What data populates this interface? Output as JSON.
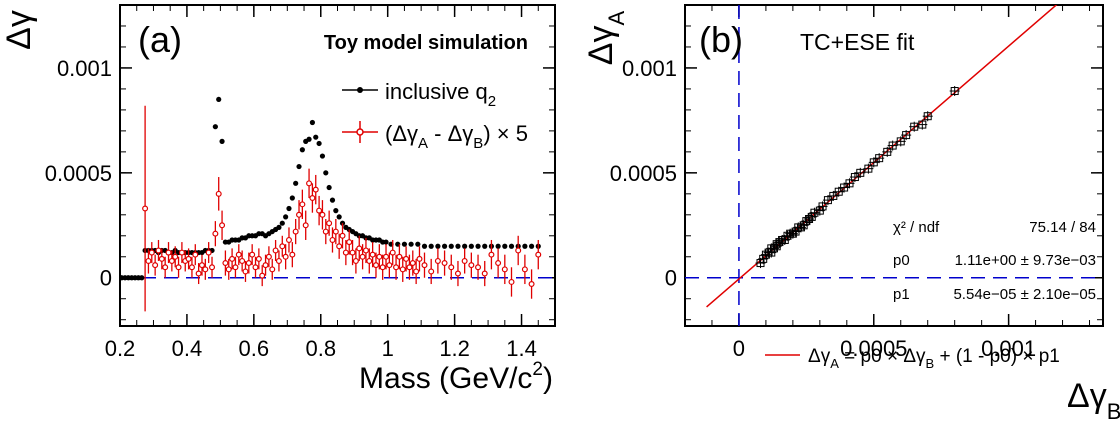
{
  "chart_data": [
    {
      "type": "scatter",
      "panel_label": "(a)",
      "title": "Toy model simulation",
      "ylabel": "Δγ",
      "xlabel": {
        "main": "Mass (GeV/c",
        "sup": "2",
        "end": ")"
      },
      "xlim": [
        0.2,
        1.5
      ],
      "ylim": [
        -0.00023,
        0.0013
      ],
      "xticks": [
        0.2,
        0.4,
        0.6,
        0.8,
        1,
        1.2,
        1.4
      ],
      "xtick_labels": [
        "0.2",
        "0.4",
        "0.6",
        "0.8",
        "1",
        "1.2",
        "1.4"
      ],
      "yticks": [
        0,
        0.0005,
        0.001
      ],
      "ytick_labels": [
        "0",
        "0.0005",
        "0.001"
      ],
      "zero_line": true,
      "legend_placement": "top-right",
      "legend": [
        {
          "key": "inclusive",
          "text": "inclusive q",
          "sub": "2"
        },
        {
          "key": "diff",
          "parts": [
            "(Δγ",
            "A",
            " - Δγ",
            "B",
            ") × 5"
          ]
        }
      ],
      "colors": {
        "inclusive": "#000000",
        "diff": "#e00000",
        "zero": "#0000cc"
      },
      "series": [
        {
          "name": "inclusive q2",
          "x": [
            0.205,
            0.215,
            0.225,
            0.235,
            0.245,
            0.255,
            0.265,
            0.275,
            0.285,
            0.295,
            0.305,
            0.315,
            0.325,
            0.335,
            0.345,
            0.355,
            0.365,
            0.375,
            0.385,
            0.395,
            0.405,
            0.415,
            0.425,
            0.435,
            0.445,
            0.455,
            0.465,
            0.475,
            0.485,
            0.495,
            0.505,
            0.515,
            0.525,
            0.535,
            0.545,
            0.555,
            0.565,
            0.575,
            0.585,
            0.595,
            0.605,
            0.615,
            0.625,
            0.635,
            0.645,
            0.655,
            0.665,
            0.675,
            0.685,
            0.695,
            0.705,
            0.715,
            0.725,
            0.735,
            0.745,
            0.755,
            0.765,
            0.775,
            0.785,
            0.795,
            0.805,
            0.815,
            0.825,
            0.835,
            0.845,
            0.855,
            0.865,
            0.875,
            0.885,
            0.895,
            0.905,
            0.915,
            0.925,
            0.935,
            0.945,
            0.955,
            0.965,
            0.975,
            0.985,
            0.995,
            1.01,
            1.03,
            1.05,
            1.07,
            1.09,
            1.11,
            1.13,
            1.15,
            1.17,
            1.19,
            1.21,
            1.23,
            1.25,
            1.27,
            1.29,
            1.31,
            1.33,
            1.35,
            1.37,
            1.39,
            1.41,
            1.43,
            1.45
          ],
          "y": [
            0,
            0,
            0,
            0,
            0,
            0,
            0,
            0.00013,
            0.00013,
            0.00013,
            0.00013,
            0.00012,
            0.00013,
            0.00013,
            0.00012,
            0.00012,
            0.00013,
            0.00012,
            0.00012,
            0.00012,
            0.00012,
            0.00012,
            0.00012,
            0.00012,
            0.00012,
            0.00013,
            0.00013,
            0.00013,
            0.00072,
            0.00085,
            0.00065,
            0.00017,
            0.00017,
            0.00018,
            0.00018,
            0.00018,
            0.00019,
            0.00019,
            0.0002,
            0.0002,
            0.0002,
            0.00021,
            0.00021,
            0.0002,
            0.00021,
            0.00022,
            0.00023,
            0.00024,
            0.00026,
            0.00029,
            0.00033,
            0.00038,
            0.00045,
            0.00053,
            0.00061,
            0.00065,
            0.00066,
            0.00074,
            0.00067,
            0.00064,
            0.00058,
            0.0005,
            0.00043,
            0.00037,
            0.00032,
            0.00029,
            0.00026,
            0.00024,
            0.00023,
            0.00022,
            0.00021,
            0.0002,
            0.0002,
            0.00019,
            0.00019,
            0.00018,
            0.00018,
            0.00018,
            0.00017,
            0.00017,
            0.00016,
            0.00016,
            0.00016,
            0.00016,
            0.00016,
            0.00015,
            0.00015,
            0.00015,
            0.00015,
            0.00015,
            0.00015,
            0.00015,
            0.00015,
            0.00015,
            0.00015,
            0.00015,
            0.00015,
            0.00015,
            0.00015,
            0.00015,
            0.00015,
            0.00015,
            0.00015
          ]
        },
        {
          "name": "(ΔγA - ΔγB) × 5",
          "x": [
            0.275,
            0.285,
            0.295,
            0.305,
            0.315,
            0.325,
            0.335,
            0.345,
            0.355,
            0.365,
            0.375,
            0.385,
            0.395,
            0.405,
            0.415,
            0.425,
            0.435,
            0.445,
            0.455,
            0.465,
            0.475,
            0.485,
            0.495,
            0.505,
            0.515,
            0.525,
            0.535,
            0.545,
            0.555,
            0.565,
            0.575,
            0.585,
            0.595,
            0.605,
            0.615,
            0.625,
            0.635,
            0.645,
            0.655,
            0.665,
            0.675,
            0.685,
            0.695,
            0.705,
            0.715,
            0.725,
            0.735,
            0.745,
            0.755,
            0.765,
            0.775,
            0.785,
            0.795,
            0.805,
            0.815,
            0.825,
            0.835,
            0.845,
            0.855,
            0.865,
            0.875,
            0.885,
            0.895,
            0.905,
            0.915,
            0.925,
            0.935,
            0.945,
            0.955,
            0.965,
            0.975,
            0.985,
            0.995,
            1.005,
            1.015,
            1.025,
            1.035,
            1.045,
            1.055,
            1.065,
            1.075,
            1.085,
            1.095,
            1.11,
            1.13,
            1.15,
            1.17,
            1.19,
            1.21,
            1.23,
            1.25,
            1.27,
            1.29,
            1.31,
            1.33,
            1.35,
            1.37,
            1.39,
            1.41,
            1.43,
            1.45
          ],
          "y": [
            0.00033,
            8e-05,
            0.00012,
            6e-05,
            0.00013,
            9e-05,
            5e-05,
            0.00012,
            8e-05,
            0.0001,
            5e-05,
            0.00012,
            8e-05,
            9e-05,
            5e-05,
            0.00011,
            2e-05,
            6e-05,
            4e-05,
            0.00012,
            5e-05,
            0.00021,
            0.0004,
            0.00025,
            7e-05,
            4e-05,
            9e-05,
            5e-05,
            0.00011,
            8e-05,
            3e-05,
            7e-05,
            0.00011,
            5e-05,
            9e-05,
            1e-05,
            6e-05,
            0.0001,
            4e-05,
            0.00013,
            8e-05,
            0.00015,
            0.0001,
            0.00018,
            0.00011,
            0.00022,
            0.0003,
            0.00035,
            0.00025,
            0.00045,
            0.00038,
            0.00042,
            0.00032,
            0.0003,
            0.00022,
            0.00026,
            0.00018,
            0.00022,
            0.00015,
            0.0002,
            0.00012,
            0.00017,
            0.00012,
            8e-05,
            0.00014,
            0.0001,
            0.00013,
            8e-05,
            0.00011,
            6e-05,
            0.0001,
            5e-05,
            0.0001,
            6e-05,
            0.00012,
            5e-05,
            0.0001,
            4e-05,
            9e-05,
            5e-05,
            7e-05,
            3e-05,
            9e-05,
            6e-05,
            3e-05,
            8e-05,
            7e-05,
            5e-05,
            2e-05,
            8e-05,
            6e-05,
            5e-05,
            2e-05,
            0.00011,
            7e-05,
            4e-05,
            -2e-05,
            0.00013,
            4e-05,
            -3e-05,
            0.00011
          ],
          "err": [
            0.00049,
            6e-05,
            5e-05,
            5e-05,
            5e-05,
            5e-05,
            5e-05,
            5e-05,
            5e-05,
            5e-05,
            5e-05,
            5e-05,
            5e-05,
            5e-05,
            5e-05,
            5e-05,
            5e-05,
            5e-05,
            5e-05,
            5e-05,
            5e-05,
            6e-05,
            8e-05,
            7e-05,
            6e-05,
            5e-05,
            5e-05,
            5e-05,
            5e-05,
            5e-05,
            5e-05,
            5e-05,
            5e-05,
            5e-05,
            5e-05,
            5e-05,
            5e-05,
            5e-05,
            5e-05,
            5e-05,
            5e-05,
            5e-05,
            6e-05,
            6e-05,
            6e-05,
            6e-05,
            7e-05,
            7e-05,
            7e-05,
            7e-05,
            7e-05,
            7e-05,
            7e-05,
            7e-05,
            6e-05,
            6e-05,
            6e-05,
            6e-05,
            6e-05,
            6e-05,
            6e-05,
            6e-05,
            6e-05,
            6e-05,
            6e-05,
            6e-05,
            6e-05,
            6e-05,
            6e-05,
            6e-05,
            6e-05,
            6e-05,
            6e-05,
            6e-05,
            6e-05,
            6e-05,
            6e-05,
            6e-05,
            6e-05,
            6e-05,
            6e-05,
            6e-05,
            6e-05,
            6e-05,
            6e-05,
            6e-05,
            6e-05,
            6e-05,
            6e-05,
            6e-05,
            6e-05,
            6e-05,
            6e-05,
            7e-05,
            7e-05,
            7e-05,
            7e-05,
            7e-05,
            7e-05,
            7e-05,
            7e-05
          ]
        }
      ]
    },
    {
      "type": "scatter",
      "panel_label": "(b)",
      "title": "TC+ESE fit",
      "ylabel": {
        "main": "Δγ",
        "sub": "A"
      },
      "xlabel": {
        "main": "Δγ",
        "sub": "B"
      },
      "xlim": [
        -0.0002,
        0.00135
      ],
      "ylim": [
        -0.00023,
        0.0013
      ],
      "xticks": [
        0,
        0.0005,
        0.001
      ],
      "xtick_labels": [
        "0",
        "0.0005",
        "0.001"
      ],
      "yticks": [
        0,
        0.0005,
        0.001
      ],
      "ytick_labels": [
        "0",
        "0.0005",
        "0.001"
      ],
      "dashed_lines": {
        "x": 0,
        "y": 0
      },
      "stats": [
        {
          "label": "χ² / ndf",
          "value": "75.14 / 84"
        },
        {
          "label": "p0",
          "value": "1.11e+00 ± 9.73e−03"
        },
        {
          "label": "p1",
          "value": "5.54e−05 ± 2.10e−05"
        }
      ],
      "legend_placement": "bottom-right",
      "fit_legend": {
        "parts": [
          "Δγ",
          "A",
          " = p0 × Δγ",
          "B",
          " + (1 - p0) × p1"
        ]
      },
      "fit": {
        "p0": 1.11,
        "p1": 5.54e-05,
        "x_range": [
          -0.00012,
          0.0012
        ]
      },
      "colors": {
        "points": "#000000",
        "fit": "#e00000",
        "dashed": "#0000cc"
      },
      "series": [
        {
          "name": "",
          "x": [
            8e-05,
            9e-05,
            0.0001,
            0.00011,
            0.00012,
            0.00012,
            0.00013,
            0.00014,
            0.00014,
            0.00015,
            0.00016,
            0.00017,
            0.00018,
            0.00019,
            0.0002,
            0.00021,
            0.00022,
            0.00023,
            0.00024,
            0.00025,
            0.00026,
            0.00027,
            0.00028,
            0.0003,
            0.00031,
            0.00033,
            0.00035,
            0.00037,
            0.00039,
            0.00041,
            0.00043,
            0.00045,
            0.00048,
            0.0005,
            0.00052,
            0.00055,
            0.00057,
            0.0006,
            0.00062,
            0.00065,
            0.00068,
            0.0007,
            0.0008
          ],
          "y": [
            7e-05,
            9e-05,
            0.00011,
            0.00012,
            0.00012,
            0.00014,
            0.00014,
            0.00015,
            0.00016,
            0.00017,
            0.00018,
            0.00018,
            0.0002,
            0.00021,
            0.00021,
            0.00022,
            0.00024,
            0.00024,
            0.00025,
            0.00027,
            0.00028,
            0.00029,
            0.00031,
            0.00032,
            0.00034,
            0.00037,
            0.00039,
            0.00041,
            0.00043,
            0.00045,
            0.00048,
            0.0005,
            0.00052,
            0.00055,
            0.00057,
            0.0006,
            0.00063,
            0.00065,
            0.00068,
            0.00072,
            0.00073,
            0.00077,
            0.00089
          ]
        }
      ]
    }
  ]
}
